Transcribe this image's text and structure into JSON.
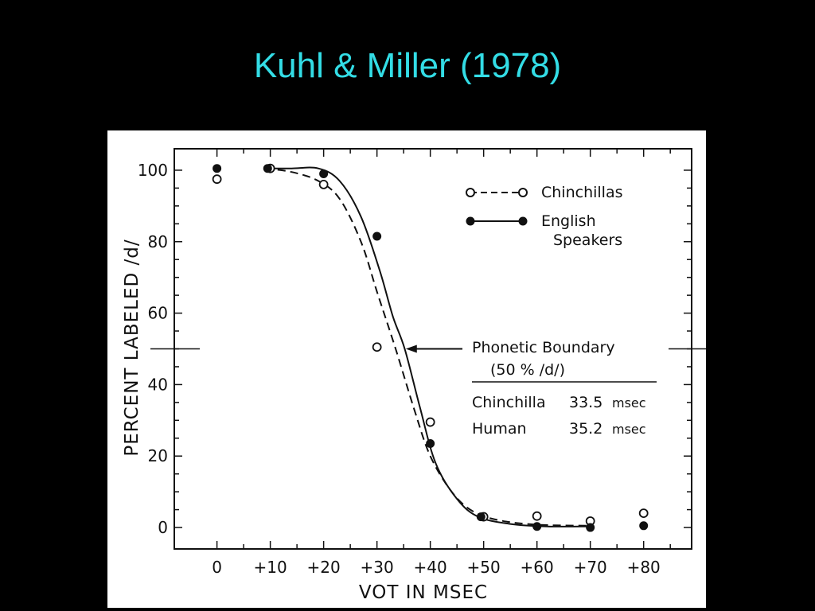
{
  "slide": {
    "title": "Kuhl & Miller (1978)"
  },
  "colors": {
    "background": "#000000",
    "title": "#33dde6",
    "figure_background": "#ffffff",
    "ink": "#111111"
  },
  "chart_data": {
    "type": "line",
    "title": "",
    "xlabel": "VOT IN MSEC",
    "ylabel": "PERCENT LABELED /d/",
    "x_ticks": [
      0,
      10,
      20,
      30,
      40,
      50,
      60,
      70,
      80
    ],
    "x_tick_labels": [
      "0",
      "+10",
      "+20",
      "+30",
      "+40",
      "+50",
      "+60",
      "+70",
      "+80"
    ],
    "y_ticks": [
      0,
      20,
      40,
      60,
      80,
      100
    ],
    "y_tick_labels": [
      "0",
      "20",
      "40",
      "60",
      "80",
      "100"
    ],
    "xlim": [
      -8,
      89
    ],
    "ylim": [
      -6,
      106
    ],
    "grid": false,
    "legend_position": "top-right",
    "series": [
      {
        "name": "Chinchillas",
        "marker": "open-circle",
        "line": "dashed",
        "points": [
          {
            "x": 0,
            "y": 97.5
          },
          {
            "x": 10,
            "y": 100.5
          },
          {
            "x": 20,
            "y": 96
          },
          {
            "x": 30,
            "y": 50.5
          },
          {
            "x": 40,
            "y": 29.5
          },
          {
            "x": 50,
            "y": 3
          },
          {
            "x": 60,
            "y": 3.2
          },
          {
            "x": 70,
            "y": 1.8
          },
          {
            "x": 80,
            "y": 4
          }
        ],
        "curve": [
          {
            "x": 9,
            "y": 100.5
          },
          {
            "x": 14,
            "y": 99.5
          },
          {
            "x": 19,
            "y": 97
          },
          {
            "x": 23,
            "y": 92
          },
          {
            "x": 27,
            "y": 80
          },
          {
            "x": 30,
            "y": 66
          },
          {
            "x": 33.5,
            "y": 50
          },
          {
            "x": 37,
            "y": 33
          },
          {
            "x": 40,
            "y": 20
          },
          {
            "x": 44,
            "y": 10
          },
          {
            "x": 48,
            "y": 4.5
          },
          {
            "x": 53,
            "y": 2
          },
          {
            "x": 60,
            "y": 0.8
          },
          {
            "x": 70,
            "y": 0.5
          }
        ]
      },
      {
        "name": "English Speakers",
        "marker": "filled-circle",
        "line": "solid",
        "points": [
          {
            "x": 0,
            "y": 100.5
          },
          {
            "x": 9.5,
            "y": 100.5
          },
          {
            "x": 20,
            "y": 99
          },
          {
            "x": 30,
            "y": 81.5
          },
          {
            "x": 40,
            "y": 23.5
          },
          {
            "x": 49.5,
            "y": 3
          },
          {
            "x": 60,
            "y": 0.3
          },
          {
            "x": 70,
            "y": 0
          },
          {
            "x": 80,
            "y": 0.5
          }
        ],
        "curve": [
          {
            "x": 9.5,
            "y": 100.5
          },
          {
            "x": 14,
            "y": 100.5
          },
          {
            "x": 19,
            "y": 100.5
          },
          {
            "x": 23,
            "y": 97
          },
          {
            "x": 27,
            "y": 87
          },
          {
            "x": 30.5,
            "y": 72
          },
          {
            "x": 33,
            "y": 59
          },
          {
            "x": 35.2,
            "y": 50
          },
          {
            "x": 38,
            "y": 34
          },
          {
            "x": 41,
            "y": 18
          },
          {
            "x": 45,
            "y": 8
          },
          {
            "x": 49,
            "y": 3
          },
          {
            "x": 55,
            "y": 1
          },
          {
            "x": 62,
            "y": 0.3
          },
          {
            "x": 70,
            "y": 0.3
          }
        ]
      }
    ],
    "boundary_line_y": 50,
    "annotation": {
      "label_line1": "Phonetic Boundary",
      "label_line2": "(50 % /d/)",
      "arrow_target": {
        "x": 34.5,
        "y": 50
      },
      "rows": [
        {
          "species": "Chinchilla",
          "value": "33.5",
          "unit": "msec"
        },
        {
          "species": "Human",
          "value": "35.2",
          "unit": "msec"
        }
      ]
    }
  }
}
